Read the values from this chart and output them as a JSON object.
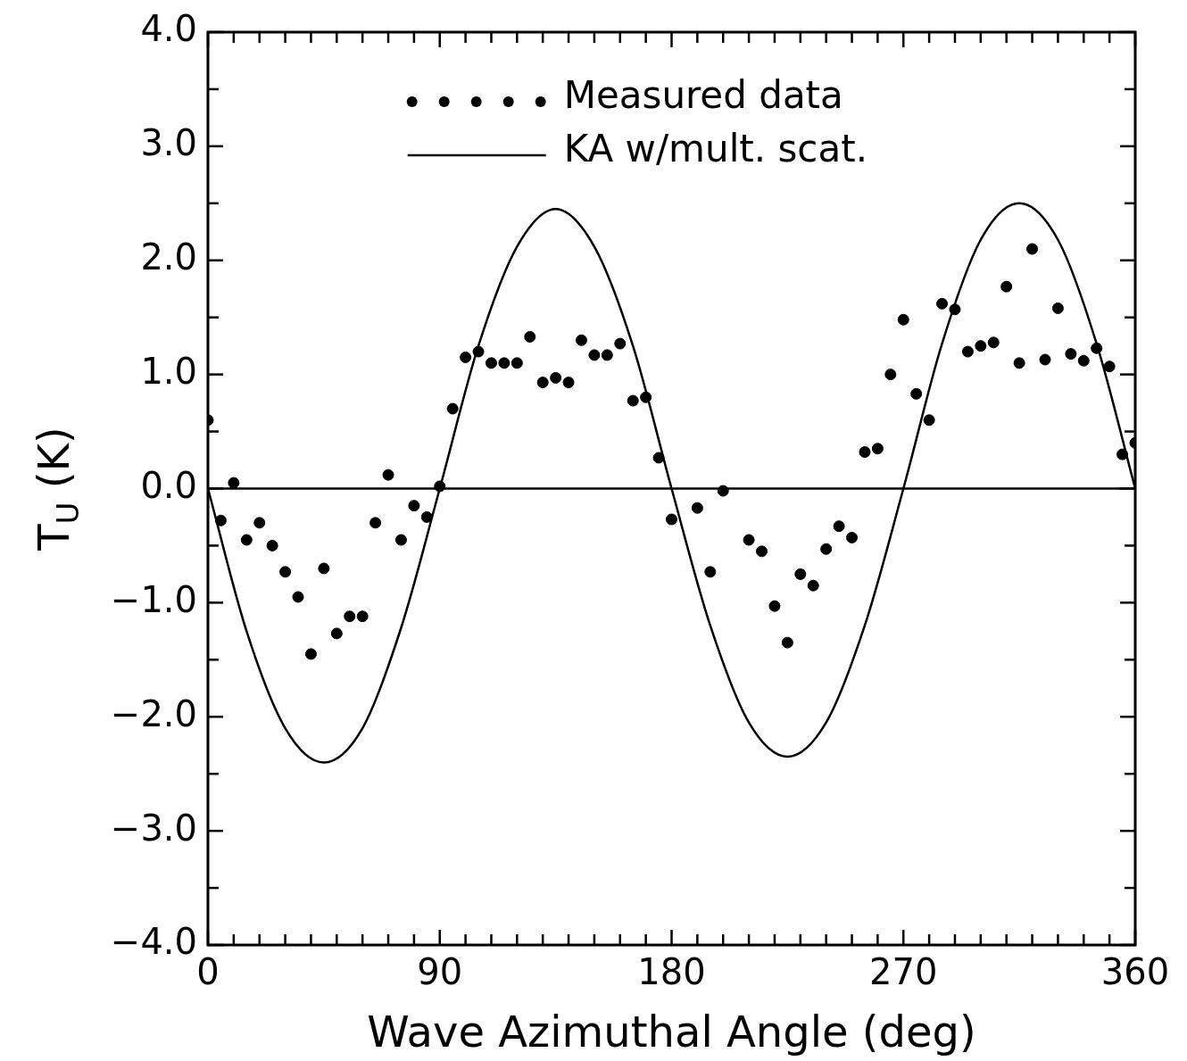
{
  "chart_data": {
    "type": "scatter",
    "xlabel": "Wave Azimuthal Angle (deg)",
    "ylabel": "T$_{U}$ (K)",
    "xlim": [
      0,
      360
    ],
    "ylim": [
      -4,
      4
    ],
    "xticks": [
      0,
      {
        "value": 10,
        "label": null
      },
      {
        "value": 20,
        "label": null
      },
      {
        "value": 30,
        "label": null
      },
      {
        "value": 40,
        "label": null
      },
      {
        "value": 50,
        "label": null
      },
      {
        "value": 60,
        "label": null
      },
      {
        "value": 70,
        "label": null
      },
      {
        "value": 80,
        "label": null
      },
      90,
      {
        "value": 100,
        "label": null
      },
      {
        "value": 110,
        "label": null
      },
      {
        "value": 120,
        "label": null
      },
      {
        "value": 130,
        "label": null
      },
      {
        "value": 140,
        "label": null
      },
      {
        "value": 150,
        "label": null
      },
      {
        "value": 160,
        "label": null
      },
      {
        "value": 170,
        "label": null
      },
      180,
      {
        "value": 190,
        "label": null
      },
      {
        "value": 200,
        "label": null
      },
      {
        "value": 210,
        "label": null
      },
      {
        "value": 220,
        "label": null
      },
      {
        "value": 230,
        "label": null
      },
      {
        "value": 240,
        "label": null
      },
      {
        "value": 250,
        "label": null
      },
      {
        "value": 260,
        "label": null
      },
      270,
      {
        "value": 280,
        "label": null
      },
      {
        "value": 290,
        "label": null
      },
      {
        "value": 300,
        "label": null
      },
      {
        "value": 310,
        "label": null
      },
      {
        "value": 320,
        "label": null
      },
      {
        "value": 330,
        "label": null
      },
      {
        "value": 340,
        "label": null
      },
      {
        "value": 350,
        "label": null
      },
      360
    ],
    "yticks": [
      {
        "value": -4,
        "label": "−4.0"
      },
      {
        "value": -3.5,
        "label": null
      },
      {
        "value": -3,
        "label": "−3.0"
      },
      {
        "value": -2.5,
        "label": null
      },
      {
        "value": -2,
        "label": "−2.0"
      },
      {
        "value": -1.5,
        "label": null
      },
      {
        "value": -1,
        "label": "−1.0"
      },
      {
        "value": -0.5,
        "label": null
      },
      {
        "value": 0,
        "label": "0.0"
      },
      {
        "value": 0.5,
        "label": null
      },
      {
        "value": 1,
        "label": "1.0"
      },
      {
        "value": 1.5,
        "label": null
      },
      {
        "value": 2,
        "label": "2.0"
      },
      {
        "value": 2.5,
        "label": null
      },
      {
        "value": 3,
        "label": "3.0"
      },
      {
        "value": 3.5,
        "label": null
      },
      {
        "value": 4,
        "label": "4.0"
      }
    ],
    "legend": "top right",
    "marker": "circle",
    "ref_lines": [
      {
        "axis": "y",
        "value": 0,
        "color": "#000000"
      }
    ],
    "series": [
      {
        "name": "Measured data",
        "color": "#000000",
        "line_style": "dotted",
        "x": [
          0,
          5,
          10,
          15,
          20,
          25,
          30,
          35,
          40,
          45,
          50,
          55,
          60,
          65,
          70,
          75,
          80,
          85,
          90,
          95,
          100,
          105,
          110,
          115,
          120,
          125,
          130,
          135,
          140,
          145,
          150,
          155,
          160,
          165,
          170,
          175,
          180,
          190,
          195,
          200,
          210,
          215,
          220,
          225,
          230,
          235,
          240,
          245,
          250,
          255,
          260,
          265,
          270,
          275,
          280,
          285,
          290,
          295,
          300,
          305,
          310,
          315,
          320,
          325,
          330,
          335,
          340,
          345,
          350,
          355,
          360
        ],
        "values": [
          0.6,
          -0.28,
          0.05,
          -0.45,
          -0.3,
          -0.5,
          -0.73,
          -0.95,
          -1.45,
          -0.7,
          -1.27,
          -1.12,
          -1.12,
          -0.3,
          0.12,
          -0.45,
          -0.15,
          -0.25,
          0.02,
          0.7,
          1.15,
          1.2,
          1.1,
          1.1,
          1.1,
          1.33,
          0.93,
          0.97,
          0.93,
          1.3,
          1.17,
          1.17,
          1.27,
          0.77,
          0.8,
          0.27,
          -0.27,
          -0.17,
          -0.73,
          -0.02,
          -0.45,
          -0.55,
          -1.03,
          -1.35,
          -0.75,
          -0.85,
          -0.53,
          -0.33,
          -0.43,
          0.32,
          0.35,
          1.0,
          1.48,
          0.83,
          0.6,
          1.62,
          1.57,
          1.2,
          1.25,
          1.28,
          1.77,
          1.1,
          2.1,
          1.13,
          1.58,
          1.18,
          1.12,
          1.23,
          1.07,
          0.3,
          0.4
        ]
      },
      {
        "name": "KA w/mult. scat.",
        "type": "line",
        "color": "#000000",
        "marker": "none",
        "line_style": "solid",
        "x": [
          0,
          15,
          30,
          45,
          60,
          75,
          90,
          105,
          120,
          135,
          150,
          165,
          180,
          195,
          210,
          225,
          240,
          255,
          270,
          285,
          300,
          315,
          330,
          345,
          360
        ],
        "values": [
          0,
          -1.25,
          -2.1,
          -2.4,
          -2.1,
          -1.22,
          0,
          1.25,
          2.12,
          2.45,
          2.12,
          1.25,
          0,
          -1.2,
          -2.05,
          -2.35,
          -2.05,
          -1.2,
          0,
          1.27,
          2.18,
          2.5,
          2.18,
          1.27,
          0
        ]
      }
    ]
  }
}
